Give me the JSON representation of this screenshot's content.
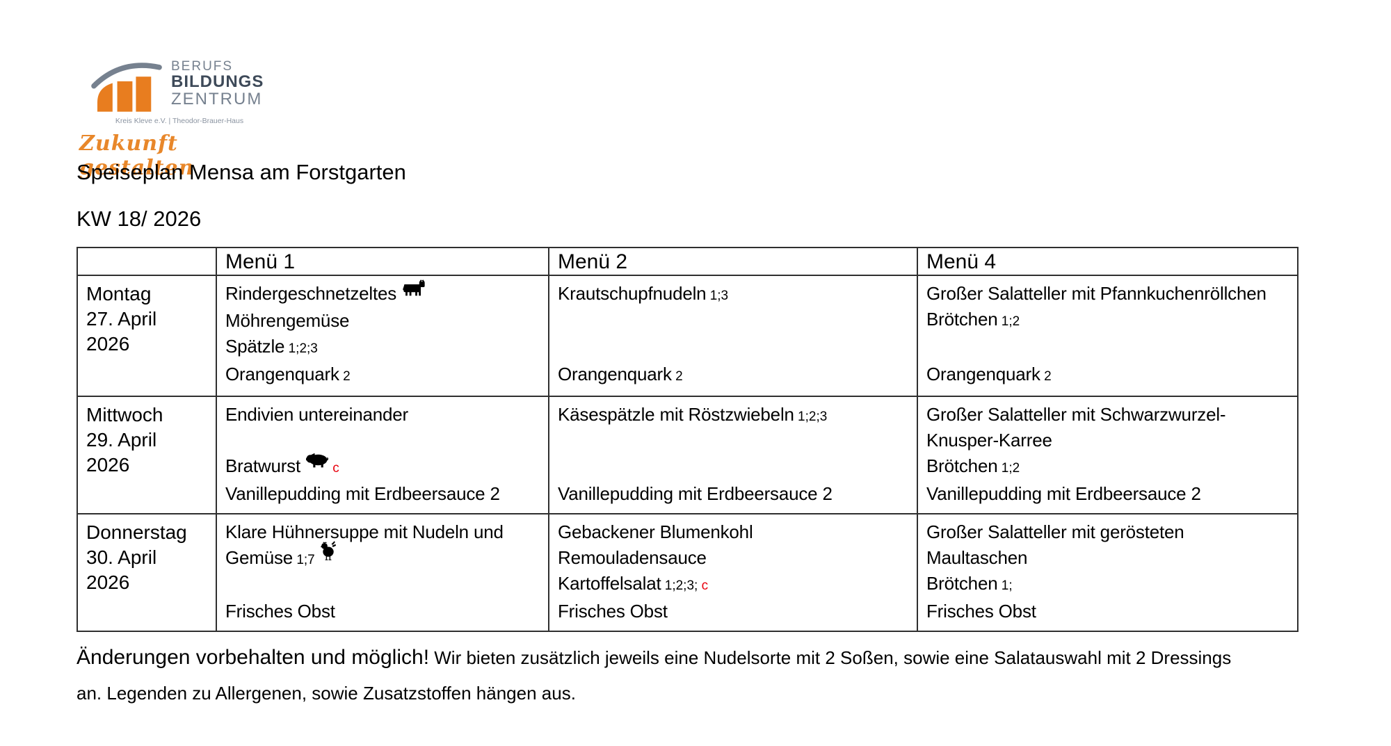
{
  "logo": {
    "line1": "BERUFS",
    "line2": "BILDUNGS",
    "line3": "ZENTRUM",
    "subtitle": "Kreis Kleve e.V.  |  Theodor-Brauer-Haus",
    "tagline": "Zukunft gestalten",
    "orange": "#e87d1f",
    "gray": "#76818f"
  },
  "title": "Speiseplan Mensa am Forstgarten",
  "week": "KW 18/ 2026",
  "colors": {
    "allergen_red": "#e8000d",
    "border": "#2f2f2f"
  },
  "table": {
    "headers": [
      "",
      "Menü 1",
      "Menü 2",
      "Menü 4"
    ],
    "rows": [
      {
        "day": [
          "Montag",
          "27. April",
          "2026"
        ],
        "cells": [
          {
            "top": [
              {
                "t": "Rindergeschnetzeltes",
                "icon": "cow"
              },
              {
                "t": "Möhrengemüse"
              },
              {
                "t": "Spätzle",
                "a": "1;2;3"
              }
            ],
            "bottom": [
              {
                "t": "Orangenquark",
                "a": "2"
              }
            ]
          },
          {
            "top": [
              {
                "t": "Krautschupfnudeln",
                "a": "1;3"
              }
            ],
            "bottom": [
              {
                "t": "Orangenquark",
                "a": "2"
              }
            ]
          },
          {
            "top": [
              {
                "t": "Großer Salatteller mit Pfannkuchenröllchen"
              },
              {
                "t": "Brötchen",
                "a": "1;2"
              }
            ],
            "bottom": [
              {
                "t": "Orangenquark",
                "a": "2"
              }
            ]
          }
        ]
      },
      {
        "day": [
          "Mittwoch",
          "29. April",
          "2026"
        ],
        "cells": [
          {
            "top": [
              {
                "t": "Endivien untereinander"
              },
              {
                "t": ""
              },
              {
                "t": "Bratwurst",
                "icon": "pig",
                "ar": "c"
              }
            ],
            "bottom": [
              {
                "t": "Vanillepudding mit Erdbeersauce 2"
              }
            ]
          },
          {
            "top": [
              {
                "t": "Käsespätzle mit Röstzwiebeln",
                "a": "1;2;3"
              }
            ],
            "bottom": [
              {
                "t": "Vanillepudding mit Erdbeersauce 2"
              }
            ]
          },
          {
            "top": [
              {
                "t": "Großer Salatteller mit Schwarzwurzel-"
              },
              {
                "t": "Knusper-Karree"
              },
              {
                "t": "Brötchen",
                "a": "1;2"
              }
            ],
            "bottom": [
              {
                "t": "Vanillepudding mit Erdbeersauce 2"
              }
            ]
          }
        ]
      },
      {
        "day": [
          "Donnerstag",
          "30. April",
          "2026"
        ],
        "cells": [
          {
            "top": [
              {
                "t": "Klare Hühnersuppe mit Nudeln und"
              },
              {
                "t": "Gemüse",
                "a": "1;7",
                "icon": "chicken"
              }
            ],
            "bottom": [
              {
                "t": "Frisches Obst"
              }
            ]
          },
          {
            "top": [
              {
                "t": "Gebackener Blumenkohl"
              },
              {
                "t": "Remouladensauce"
              },
              {
                "t": "Kartoffelsalat",
                "a": "1;2;3;",
                "ar": "c"
              }
            ],
            "bottom": [
              {
                "t": "Frisches Obst"
              }
            ]
          },
          {
            "top": [
              {
                "t": "Großer Salatteller mit gerösteten"
              },
              {
                "t": "Maultaschen"
              },
              {
                "t": "Brötchen",
                "a": "1;"
              }
            ],
            "bottom": [
              {
                "t": "Frisches Obst"
              }
            ]
          }
        ]
      }
    ]
  },
  "footer": {
    "bold": "Änderungen vorbehalten und möglich!",
    "rest1": "Wir bieten zusätzlich jeweils eine Nudelsorte mit 2 Soßen, sowie eine Salatauswahl mit 2 Dressings",
    "line2": "an. Legenden zu Allergenen, sowie Zusatzstoffen hängen aus."
  }
}
